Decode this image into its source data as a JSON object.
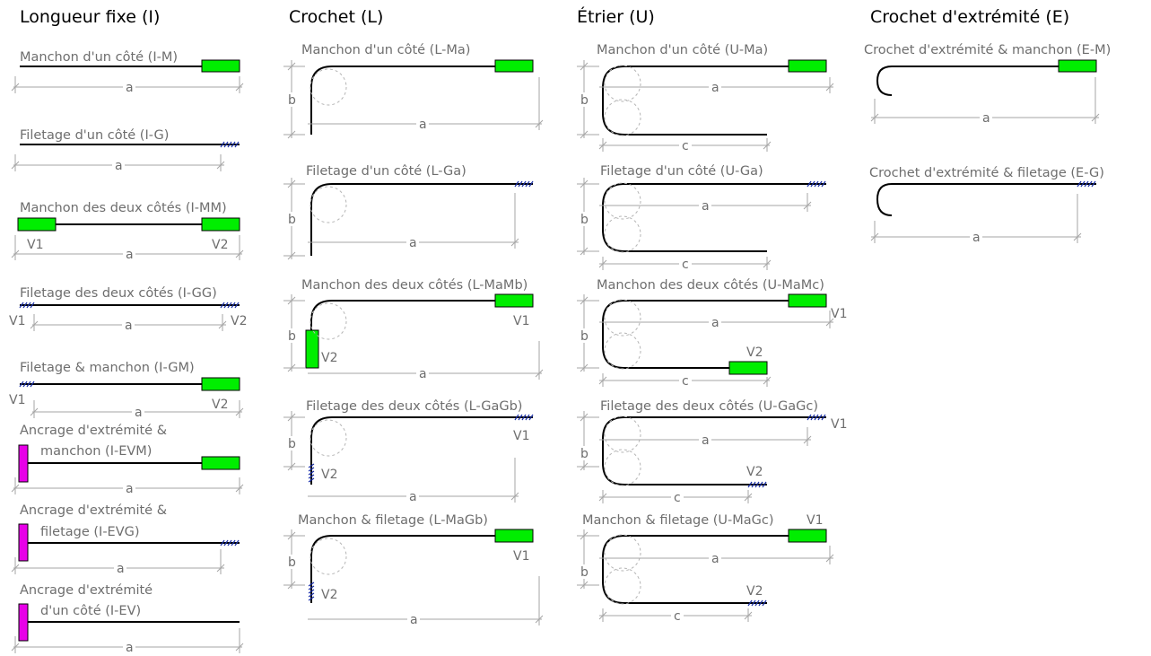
{
  "columns": {
    "I": {
      "title": "Longueur fixe (I)",
      "items": [
        {
          "code": "I-M",
          "caption": "Manchon d'un côté (I-M)"
        },
        {
          "code": "I-G",
          "caption": "Filetage d'un côté (I-G)"
        },
        {
          "code": "I-MM",
          "caption": "Manchon des deux côtés (I-MM)"
        },
        {
          "code": "I-GG",
          "caption": "Filetage des deux côtés (I-GG)"
        },
        {
          "code": "I-GM",
          "caption": "Filetage & manchon (I-GM)"
        },
        {
          "code": "I-EVM",
          "caption_line1": "Ancrage d'extrémité &",
          "caption_line2": "manchon (I-EVM)"
        },
        {
          "code": "I-EVG",
          "caption_line1": "Ancrage d'extrémité &",
          "caption_line2": "filetage (I-EVG)"
        },
        {
          "code": "I-EV",
          "caption_line1": "Ancrage d'extrémité",
          "caption_line2": "d'un côté (I-EV)"
        }
      ]
    },
    "L": {
      "title": "Crochet (L)",
      "items": [
        {
          "code": "L-Ma",
          "caption": "Manchon d'un côté (L-Ma)"
        },
        {
          "code": "L-Ga",
          "caption": "Filetage d'un côté (L-Ga)"
        },
        {
          "code": "L-MaMb",
          "caption": "Manchon des deux côtés (L-MaMb)"
        },
        {
          "code": "L-GaGb",
          "caption": "Filetage des deux côtés (L-GaGb)"
        },
        {
          "code": "L-MaGb",
          "caption": "Manchon & filetage (L-MaGb)"
        }
      ]
    },
    "U": {
      "title": "Étrier (U)",
      "items": [
        {
          "code": "U-Ma",
          "caption": "Manchon d'un côté (U-Ma)"
        },
        {
          "code": "U-Ga",
          "caption": "Filetage d'un côté (U-Ga)"
        },
        {
          "code": "U-MaMc",
          "caption": "Manchon des deux côtés (U-MaMc)"
        },
        {
          "code": "U-GaGc",
          "caption": "Filetage des deux côtés (U-GaGc)"
        },
        {
          "code": "U-MaGc",
          "caption": "Manchon & filetage (U-MaGc)"
        }
      ]
    },
    "E": {
      "title": "Crochet d'extrémité (E)",
      "items": [
        {
          "code": "E-M",
          "caption": "Crochet d'extrémité & manchon (E-M)"
        },
        {
          "code": "E-G",
          "caption": "Crochet d'extrémité & filetage (E-G)"
        }
      ]
    }
  },
  "labels": {
    "a": "a",
    "b": "b",
    "c": "c",
    "v1": "V1",
    "v2": "V2"
  },
  "colors": {
    "sleeve": "#00ee00",
    "anchor": "#e800e8",
    "thread": "#1a2fa8",
    "dimension": "#a6a6a6",
    "bar": "#000000",
    "caption": "#6e6e6e"
  }
}
